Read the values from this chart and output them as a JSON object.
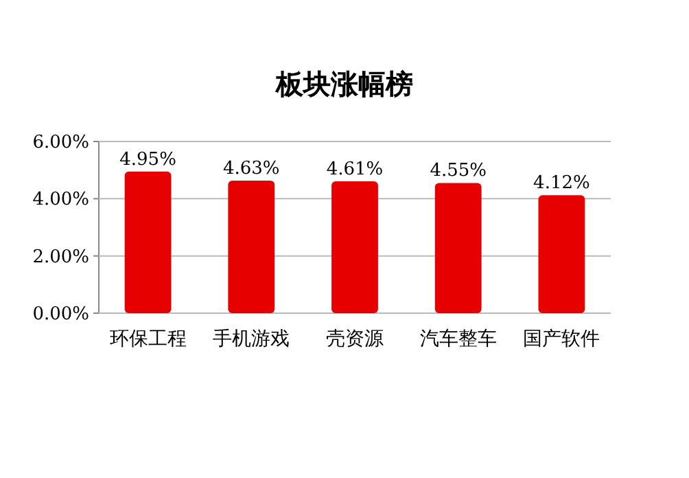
{
  "chart_data": {
    "type": "bar",
    "title": "板块涨幅榜",
    "categories": [
      "环保工程",
      "手机游戏",
      "壳资源",
      "汽车整车",
      "国产软件"
    ],
    "values": [
      4.95,
      4.63,
      4.61,
      4.55,
      4.12
    ],
    "value_labels": [
      "4.95%",
      "4.63%",
      "4.61%",
      "4.55%",
      "4.12%"
    ],
    "color": "#e60000",
    "ylim": [
      0,
      6
    ],
    "yticks": [
      {
        "value": 0,
        "label": "0.00%"
      },
      {
        "value": 2,
        "label": "2.00%"
      },
      {
        "value": 4,
        "label": "4.00%"
      },
      {
        "value": 6,
        "label": "6.00%"
      }
    ],
    "grid": "y"
  }
}
